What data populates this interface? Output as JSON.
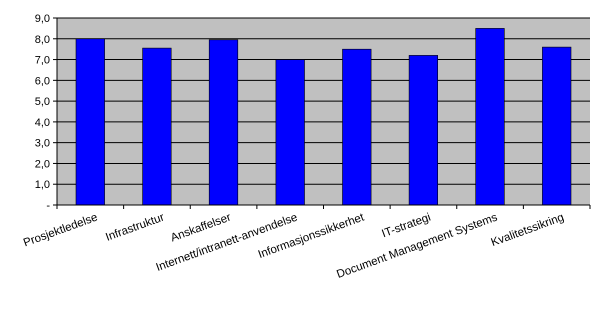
{
  "chart_data": {
    "type": "bar",
    "title": "",
    "xlabel": "",
    "ylabel": "",
    "categories": [
      "Prosjektledelse",
      "Infrastruktur",
      "Anskaffelser",
      "Internett/intranett-anvendelse",
      "Informasjonssikkerhet",
      "IT-strategi",
      "Document Management Systems",
      "Kvalitetssikring"
    ],
    "values": [
      8.0,
      7.55,
      7.95,
      7.0,
      7.5,
      7.2,
      8.5,
      7.6
    ],
    "ylim": [
      0,
      9
    ],
    "yticks": [
      "-",
      "1,0",
      "2,0",
      "3,0",
      "4,0",
      "5,0",
      "6,0",
      "7,0",
      "8,0",
      "9,0"
    ],
    "grid": true,
    "legend": "none",
    "colors": {
      "bar": "#0000ff",
      "bar_edge": "#000000",
      "plot_background": "#c0c0c0",
      "gridline": "#000000"
    }
  }
}
